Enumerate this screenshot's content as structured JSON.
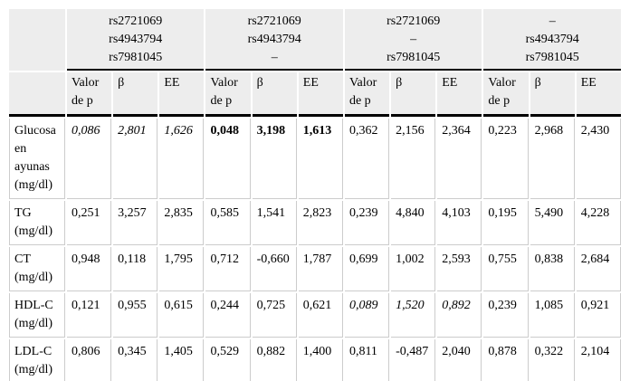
{
  "colors": {
    "header_bg": "#ededed",
    "grid_line": "#cccccc",
    "rule": "#000000",
    "text": "#000000",
    "page_bg": "#ffffff"
  },
  "table": {
    "corner_label": "",
    "haplotype_groups": [
      {
        "lines": [
          "rs2721069",
          "rs4943794",
          "rs7981045"
        ]
      },
      {
        "lines": [
          "rs2721069",
          "rs4943794",
          "–"
        ]
      },
      {
        "lines": [
          "rs2721069",
          "–",
          "rs7981045"
        ]
      },
      {
        "lines": [
          "–",
          "rs4943794",
          "rs7981045"
        ]
      }
    ],
    "subheaders": [
      "Valor de p",
      "β",
      "EE"
    ],
    "rows": [
      {
        "label": "Glucosa en ayunas (mg/dl)",
        "values": [
          "0,086",
          "2,801",
          "1,626",
          "0,048",
          "3,198",
          "1,613",
          "0,362",
          "2,156",
          "2,364",
          "0,223",
          "2,968",
          "2,430"
        ],
        "styles": [
          "italic",
          "italic",
          "italic",
          "bold",
          "bold",
          "bold",
          "",
          "",
          "",
          "",
          "",
          ""
        ]
      },
      {
        "label": "TG (mg/dl)",
        "values": [
          "0,251",
          "3,257",
          "2,835",
          "0,585",
          "1,541",
          "2,823",
          "0,239",
          "4,840",
          "4,103",
          "0,195",
          "5,490",
          "4,228"
        ],
        "styles": [
          "",
          "",
          "",
          "",
          "",
          "",
          "",
          "",
          "",
          "",
          "",
          ""
        ]
      },
      {
        "label": "CT (mg/dl)",
        "values": [
          "0,948",
          "0,118",
          "1,795",
          "0,712",
          "-0,660",
          "1,787",
          "0,699",
          "1,002",
          "2,593",
          "0,755",
          "0,838",
          "2,684"
        ],
        "styles": [
          "",
          "",
          "",
          "",
          "",
          "",
          "",
          "",
          "",
          "",
          "",
          ""
        ]
      },
      {
        "label": "HDL-C (mg/dl)",
        "values": [
          "0,121",
          "0,955",
          "0,615",
          "0,244",
          "0,725",
          "0,621",
          "0,089",
          "1,520",
          "0,892",
          "0,239",
          "1,085",
          "0,921"
        ],
        "styles": [
          "",
          "",
          "",
          "",
          "",
          "",
          "italic",
          "italic",
          "italic",
          "",
          "",
          ""
        ]
      },
      {
        "label": "LDL-C (mg/dl)",
        "values": [
          "0,806",
          "0,345",
          "1,405",
          "0,529",
          "0,882",
          "1,400",
          "0,811",
          "-0,487",
          "2,040",
          "0,878",
          "0,322",
          "2,104"
        ],
        "styles": [
          "",
          "",
          "",
          "",
          "",
          "",
          "",
          "",
          "",
          "",
          "",
          ""
        ]
      }
    ]
  }
}
